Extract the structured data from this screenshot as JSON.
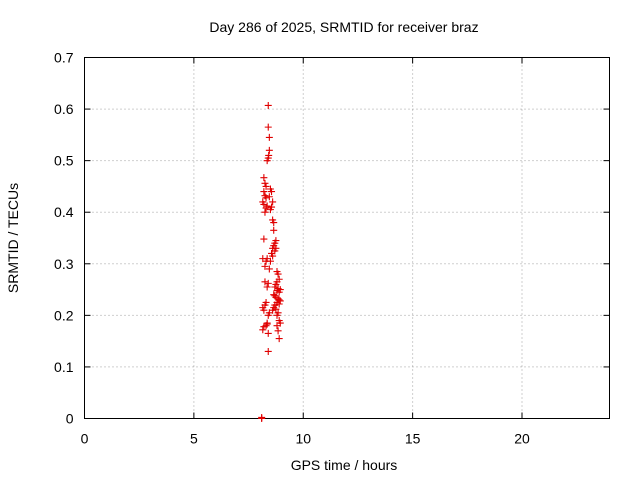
{
  "chart_data": {
    "type": "scatter",
    "title": "Day 286 of 2025, SRMTID for receiver braz",
    "xlabel": "GPS time / hours",
    "ylabel": "SRMTID / TECUs",
    "xlim": [
      0,
      24
    ],
    "ylim": [
      0,
      0.7
    ],
    "x_ticks": [
      0,
      5,
      10,
      15,
      20
    ],
    "x_tick_labels": [
      "0",
      "5",
      "10",
      "15",
      "20"
    ],
    "y_ticks": [
      0,
      0.1,
      0.2,
      0.3,
      0.4,
      0.5,
      0.6,
      0.7
    ],
    "y_tick_labels": [
      "0",
      "0.1",
      "0.2",
      "0.3",
      "0.4",
      "0.5",
      "0.6",
      "0.7"
    ],
    "grid": true,
    "legend": "none",
    "marker": "+",
    "marker_color": "#e00000",
    "series": [
      {
        "x": [
          8.4,
          8.4,
          8.45,
          8.45,
          8.42,
          8.4,
          8.35,
          8.2,
          8.25,
          8.3,
          8.2,
          8.25,
          8.3,
          8.15,
          8.2,
          8.35,
          8.3,
          8.25,
          8.5,
          8.55,
          8.45,
          8.6,
          8.55,
          8.5,
          8.6,
          8.65,
          8.65,
          8.75,
          8.7,
          8.65,
          8.6,
          8.75,
          8.7,
          8.55,
          8.6,
          8.35,
          8.5,
          8.2,
          8.15,
          8.3,
          8.25,
          8.45,
          8.25,
          8.4,
          8.35,
          8.8,
          8.85,
          8.9,
          8.8,
          8.75,
          8.7,
          8.85,
          8.95,
          8.8,
          8.9,
          8.65,
          8.7,
          8.75,
          8.85,
          8.9,
          8.95,
          8.8,
          8.9,
          8.7,
          8.65,
          8.75,
          8.6,
          8.85,
          8.8,
          8.9,
          8.95,
          8.8,
          8.85,
          8.9,
          8.3,
          8.25,
          8.15,
          8.2,
          8.45,
          8.4,
          8.35,
          8.35,
          8.3,
          8.2,
          8.15,
          8.4,
          8.4,
          8.1,
          8.1
        ],
        "y": [
          0.607,
          0.565,
          0.545,
          0.52,
          0.51,
          0.505,
          0.5,
          0.467,
          0.456,
          0.45,
          0.44,
          0.432,
          0.428,
          0.42,
          0.415,
          0.412,
          0.408,
          0.4,
          0.445,
          0.44,
          0.43,
          0.42,
          0.41,
          0.405,
          0.385,
          0.38,
          0.365,
          0.345,
          0.34,
          0.335,
          0.33,
          0.33,
          0.325,
          0.32,
          0.315,
          0.31,
          0.305,
          0.348,
          0.31,
          0.305,
          0.295,
          0.29,
          0.265,
          0.262,
          0.255,
          0.285,
          0.28,
          0.27,
          0.265,
          0.26,
          0.255,
          0.252,
          0.25,
          0.248,
          0.245,
          0.24,
          0.238,
          0.235,
          0.232,
          0.23,
          0.228,
          0.225,
          0.222,
          0.22,
          0.215,
          0.212,
          0.21,
          0.205,
          0.2,
          0.19,
          0.185,
          0.18,
          0.17,
          0.155,
          0.225,
          0.22,
          0.215,
          0.21,
          0.205,
          0.2,
          0.185,
          0.183,
          0.18,
          0.178,
          0.172,
          0.165,
          0.13,
          0.002,
          0.0
        ]
      }
    ]
  }
}
